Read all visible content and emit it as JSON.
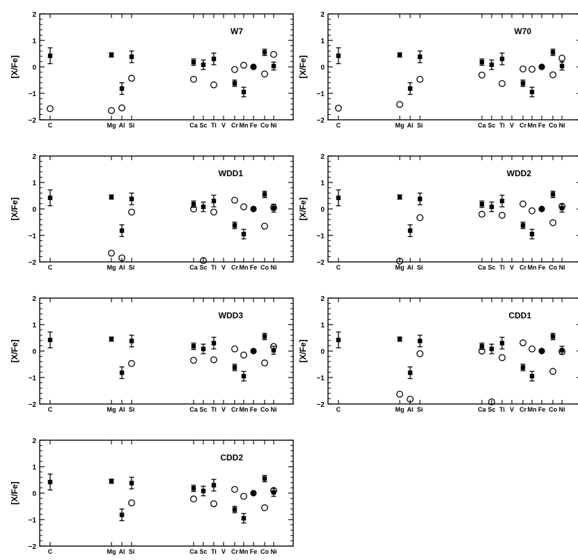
{
  "chart_data": {
    "type": "scatter",
    "ylabel": "[X/Fe]",
    "ylim": [
      -2,
      2
    ],
    "yticks": [
      -2,
      -1,
      0,
      1,
      2
    ],
    "element_labels": [
      "C",
      "Mg",
      "Al",
      "Si",
      "Ca",
      "Sc",
      "Ti",
      "V",
      "Cr",
      "Mn",
      "Fe",
      "Co",
      "Ni"
    ],
    "observed": [
      {
        "element": "C",
        "value": 0.42,
        "err": 0.3
      },
      {
        "element": "Mg",
        "value": 0.45,
        "err": 0.08
      },
      {
        "element": "Al",
        "value": -0.82,
        "err": 0.22
      },
      {
        "element": "Si",
        "value": 0.38,
        "err": 0.22
      },
      {
        "element": "Ca",
        "value": 0.18,
        "err": 0.12
      },
      {
        "element": "Sc",
        "value": 0.08,
        "err": 0.18
      },
      {
        "element": "Ti",
        "value": 0.3,
        "err": 0.22
      },
      {
        "element": "Cr",
        "value": -0.62,
        "err": 0.12
      },
      {
        "element": "Mn",
        "value": -0.95,
        "err": 0.18
      },
      {
        "element": "Fe",
        "value": 0.0,
        "err": 0
      },
      {
        "element": "Co",
        "value": 0.55,
        "err": 0.12
      },
      {
        "element": "Ni",
        "value": 0.03,
        "err": 0.15
      }
    ],
    "panels": [
      {
        "title": "W7",
        "model": [
          {
            "element": "C",
            "value": -1.58
          },
          {
            "element": "Mg",
            "value": -1.65
          },
          {
            "element": "Al",
            "value": -1.55
          },
          {
            "element": "Si",
            "value": -0.43
          },
          {
            "element": "Ca",
            "value": -0.47
          },
          {
            "element": "Ti",
            "value": -0.68
          },
          {
            "element": "Cr",
            "value": -0.1
          },
          {
            "element": "Mn",
            "value": 0.06
          },
          {
            "element": "Co",
            "value": -0.27
          },
          {
            "element": "Ni",
            "value": 0.47
          }
        ]
      },
      {
        "title": "W70",
        "model": [
          {
            "element": "C",
            "value": -1.56
          },
          {
            "element": "Mg",
            "value": -1.42
          },
          {
            "element": "Si",
            "value": -0.47
          },
          {
            "element": "Ca",
            "value": -0.31
          },
          {
            "element": "Ti",
            "value": -0.63
          },
          {
            "element": "Cr",
            "value": -0.08
          },
          {
            "element": "Mn",
            "value": -0.09
          },
          {
            "element": "Co",
            "value": -0.3
          },
          {
            "element": "Ni",
            "value": 0.33
          }
        ]
      },
      {
        "title": "WDD1",
        "model": [
          {
            "element": "Mg",
            "value": -1.67
          },
          {
            "element": "Al",
            "value": -1.85
          },
          {
            "element": "Si",
            "value": -0.12
          },
          {
            "element": "Ca",
            "value": 0.0
          },
          {
            "element": "Sc",
            "value": -1.95
          },
          {
            "element": "Ti",
            "value": -0.12
          },
          {
            "element": "Cr",
            "value": 0.33
          },
          {
            "element": "Mn",
            "value": 0.08
          },
          {
            "element": "Co",
            "value": -0.65
          },
          {
            "element": "Ni",
            "value": 0.05
          }
        ]
      },
      {
        "title": "WDD2",
        "model": [
          {
            "element": "Mg",
            "value": -1.97
          },
          {
            "element": "Si",
            "value": -0.33
          },
          {
            "element": "Ca",
            "value": -0.2
          },
          {
            "element": "Ti",
            "value": -0.24
          },
          {
            "element": "Cr",
            "value": 0.19
          },
          {
            "element": "Mn",
            "value": -0.07
          },
          {
            "element": "Co",
            "value": -0.52
          },
          {
            "element": "Ni",
            "value": 0.1
          }
        ]
      },
      {
        "title": "WDD3",
        "model": [
          {
            "element": "Si",
            "value": -0.47
          },
          {
            "element": "Ca",
            "value": -0.35
          },
          {
            "element": "Ti",
            "value": -0.33
          },
          {
            "element": "Cr",
            "value": 0.08
          },
          {
            "element": "Mn",
            "value": -0.15
          },
          {
            "element": "Co",
            "value": -0.45
          },
          {
            "element": "Ni",
            "value": 0.17
          }
        ]
      },
      {
        "title": "CDD1",
        "model": [
          {
            "element": "Mg",
            "value": -1.63
          },
          {
            "element": "Al",
            "value": -1.82
          },
          {
            "element": "Si",
            "value": -0.1
          },
          {
            "element": "Ca",
            "value": 0.0
          },
          {
            "element": "Sc",
            "value": -1.92
          },
          {
            "element": "Ti",
            "value": -0.25
          },
          {
            "element": "Cr",
            "value": 0.31
          },
          {
            "element": "Mn",
            "value": 0.08
          },
          {
            "element": "Co",
            "value": -0.77
          },
          {
            "element": "Ni",
            "value": -0.02
          }
        ]
      },
      {
        "title": "CDD2",
        "model": [
          {
            "element": "Si",
            "value": -0.37
          },
          {
            "element": "Ca",
            "value": -0.22
          },
          {
            "element": "Ti",
            "value": -0.4
          },
          {
            "element": "Cr",
            "value": 0.14
          },
          {
            "element": "Mn",
            "value": -0.12
          },
          {
            "element": "Co",
            "value": -0.55
          },
          {
            "element": "Ni",
            "value": 0.1
          }
        ]
      }
    ]
  }
}
